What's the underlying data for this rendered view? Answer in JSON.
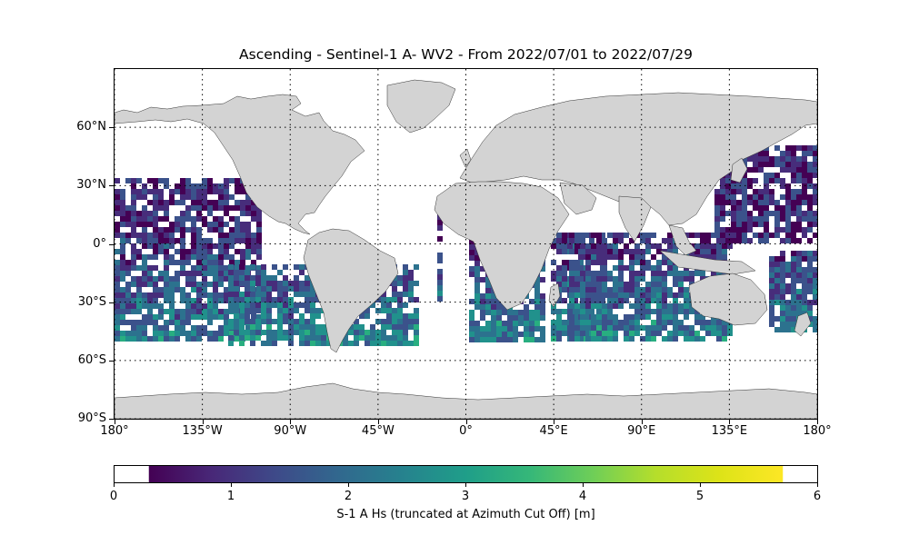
{
  "title": "Ascending - Sentinel-1 A- WV2 - From 2022/07/01 to 2022/07/29",
  "map": {
    "lon_range": [
      -180,
      180
    ],
    "lat_range": [
      -90,
      90
    ],
    "lat_labels": [
      {
        "lat": 60,
        "label": "60°N"
      },
      {
        "lat": 30,
        "label": "30°N"
      },
      {
        "lat": 0,
        "label": "0°"
      },
      {
        "lat": -30,
        "label": "30°S"
      },
      {
        "lat": -60,
        "label": "60°S"
      },
      {
        "lat": -90,
        "label": "90°S"
      }
    ],
    "lon_labels": [
      {
        "lon": -180,
        "label": "180°"
      },
      {
        "lon": -135,
        "label": "135°W"
      },
      {
        "lon": -90,
        "label": "90°W"
      },
      {
        "lon": -45,
        "label": "45°W"
      },
      {
        "lon": 0,
        "label": "0°"
      },
      {
        "lon": 45,
        "label": "45°E"
      },
      {
        "lon": 90,
        "label": "90°E"
      },
      {
        "lon": 135,
        "label": "135°E"
      },
      {
        "lon": 180,
        "label": "180°"
      }
    ],
    "land_color": "#d3d3d3",
    "gridlines": "dotted"
  },
  "colorbar": {
    "label": "S-1 A Hs (truncated at Azimuth Cut Off) [m]",
    "min": 0,
    "max": 6,
    "ticks": [
      "0",
      "1",
      "2",
      "3",
      "4",
      "5",
      "6"
    ],
    "colormap": "viridis"
  }
}
